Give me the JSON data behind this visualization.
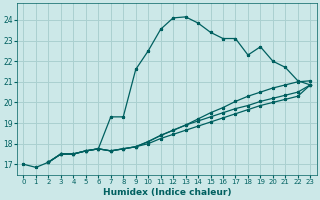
{
  "xlabel": "Humidex (Indice chaleur)",
  "bg_color": "#cce8e8",
  "grid_color": "#aad0d0",
  "line_color": "#006060",
  "xlim": [
    -0.5,
    23.5
  ],
  "ylim": [
    16.5,
    24.8
  ],
  "xticks": [
    0,
    1,
    2,
    3,
    4,
    5,
    6,
    7,
    8,
    9,
    10,
    11,
    12,
    13,
    14,
    15,
    16,
    17,
    18,
    19,
    20,
    21,
    22,
    23
  ],
  "yticks": [
    17,
    18,
    19,
    20,
    21,
    22,
    23,
    24
  ],
  "line1_x": [
    0,
    1,
    2,
    3,
    4,
    5,
    6,
    7,
    8,
    9,
    10,
    11,
    12,
    13,
    14,
    15,
    16,
    17,
    18,
    19,
    20,
    21,
    22,
    23
  ],
  "line1_y": [
    17.0,
    16.85,
    17.1,
    17.5,
    17.5,
    17.65,
    17.75,
    19.3,
    19.3,
    21.6,
    22.5,
    23.55,
    24.1,
    24.15,
    23.85,
    23.4,
    23.1,
    23.1,
    22.3,
    22.7,
    22.0,
    21.7,
    21.05,
    20.85
  ],
  "line2_x": [
    2,
    3,
    4,
    5,
    6,
    7,
    8,
    9,
    10,
    11,
    12,
    13,
    14,
    15,
    16,
    17,
    18,
    19,
    20,
    21,
    22,
    23
  ],
  "line2_y": [
    17.1,
    17.5,
    17.5,
    17.65,
    17.75,
    17.65,
    17.75,
    17.85,
    18.1,
    18.4,
    18.65,
    18.9,
    19.2,
    19.5,
    19.75,
    20.05,
    20.3,
    20.5,
    20.7,
    20.85,
    21.0,
    21.05
  ],
  "line3_x": [
    2,
    3,
    4,
    5,
    6,
    7,
    8,
    9,
    10,
    11,
    12,
    13,
    14,
    15,
    16,
    17,
    18,
    19,
    20,
    21,
    22,
    23
  ],
  "line3_y": [
    17.1,
    17.5,
    17.5,
    17.65,
    17.75,
    17.65,
    17.75,
    17.85,
    18.1,
    18.4,
    18.65,
    18.9,
    19.1,
    19.3,
    19.5,
    19.7,
    19.85,
    20.05,
    20.2,
    20.35,
    20.5,
    20.85
  ],
  "line4_x": [
    2,
    3,
    4,
    5,
    6,
    7,
    8,
    9,
    10,
    11,
    12,
    13,
    14,
    15,
    16,
    17,
    18,
    19,
    20,
    21,
    22,
    23
  ],
  "line4_y": [
    17.1,
    17.5,
    17.5,
    17.65,
    17.75,
    17.65,
    17.75,
    17.85,
    18.0,
    18.25,
    18.45,
    18.65,
    18.85,
    19.05,
    19.25,
    19.45,
    19.65,
    19.85,
    20.0,
    20.15,
    20.3,
    20.85
  ]
}
